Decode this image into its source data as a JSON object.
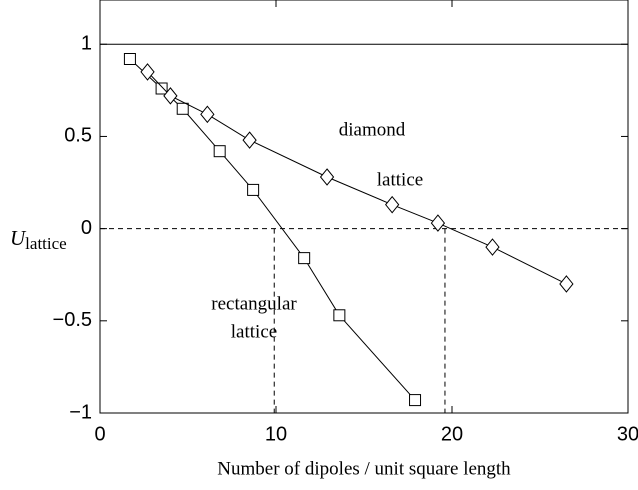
{
  "chart_data": {
    "type": "line",
    "xlabel": "Number of dipoles / unit square length",
    "ylabel": {
      "main": "U",
      "sub": "lattice"
    },
    "series": [
      {
        "name": "rectangular lattice",
        "marker": "square",
        "color": "#000000",
        "x": [
          1.7,
          3.5,
          4.7,
          6.8,
          8.7,
          11.6,
          13.6,
          17.9
        ],
        "values": [
          0.92,
          0.76,
          0.65,
          0.42,
          0.21,
          -0.16,
          -0.47,
          -0.93
        ]
      },
      {
        "name": "diamond lattice",
        "marker": "diamond",
        "color": "#000000",
        "x": [
          2.7,
          4.0,
          6.1,
          8.5,
          12.9,
          16.6,
          19.2,
          22.3,
          26.5
        ],
        "values": [
          0.85,
          0.72,
          0.62,
          0.48,
          0.28,
          0.13,
          0.03,
          -0.1,
          -0.3
        ]
      }
    ],
    "annotations": [
      {
        "lines": [
          "diamond",
          "lattice"
        ]
      },
      {
        "lines": [
          "rectangular",
          "lattice"
        ]
      }
    ],
    "hlines": [
      {
        "value": 1,
        "style": "solid"
      },
      {
        "value": 0,
        "style": "dashed"
      }
    ],
    "vlines": [
      {
        "value": 9.9,
        "style": "dashed"
      },
      {
        "value": 19.6,
        "style": "dashed"
      }
    ],
    "xlim": [
      0,
      30
    ],
    "xticks": [
      0,
      10,
      20,
      30
    ],
    "ylim": [
      -1,
      1.24
    ],
    "yticks": [
      {
        "value": -1,
        "label": "−1"
      },
      {
        "value": -0.5,
        "label": "−0.5"
      },
      0,
      0.5,
      1
    ],
    "grid": false
  }
}
